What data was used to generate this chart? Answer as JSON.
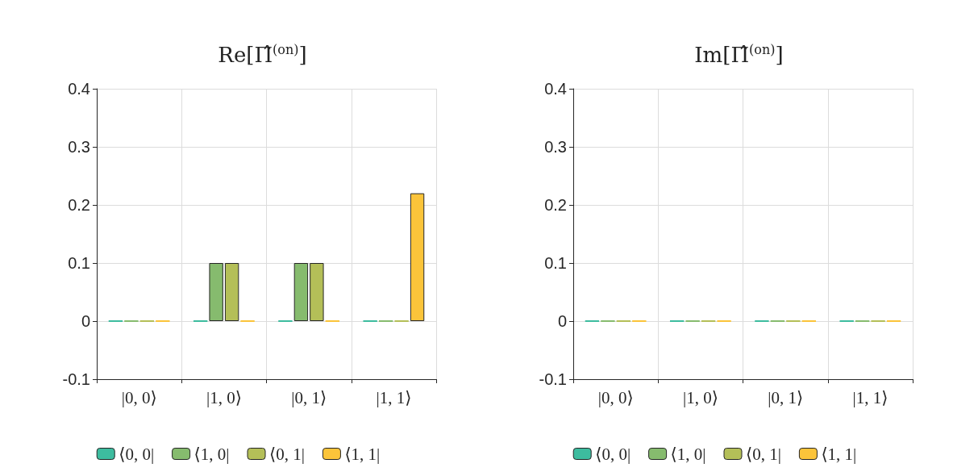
{
  "chart_data": [
    {
      "type": "bar",
      "title": "Re[Π̂$^{(on)}$]",
      "categories": [
        "|0, 0⟩",
        "|1, 0⟩",
        "|0, 1⟩",
        "|1, 1⟩"
      ],
      "series": [
        {
          "name": "⟨0, 0|",
          "color": "#3dbc9f",
          "values": [
            0,
            0,
            0,
            0
          ]
        },
        {
          "name": "⟨1, 0|",
          "color": "#86bb6e",
          "values": [
            0,
            0.1,
            0.1,
            0
          ]
        },
        {
          "name": "⟨0, 1|",
          "color": "#b4bf58",
          "values": [
            0,
            0.1,
            0.1,
            0
          ]
        },
        {
          "name": "⟨1, 1|",
          "color": "#fbc43a",
          "values": [
            0,
            0,
            0,
            0.22
          ]
        }
      ],
      "ylim": [
        -0.1,
        0.4
      ],
      "yticks": [
        -0.1,
        0,
        0.1,
        0.2,
        0.3,
        0.4
      ],
      "grid": true,
      "legend": "bottom"
    },
    {
      "type": "bar",
      "title": "Im[Π̂$^{(on)}$]",
      "categories": [
        "|0, 0⟩",
        "|1, 0⟩",
        "|0, 1⟩",
        "|1, 1⟩"
      ],
      "series": [
        {
          "name": "⟨0, 0|",
          "color": "#3dbc9f",
          "values": [
            0,
            0,
            0,
            0
          ]
        },
        {
          "name": "⟨1, 0|",
          "color": "#86bb6e",
          "values": [
            0,
            0,
            0,
            0
          ]
        },
        {
          "name": "⟨0, 1|",
          "color": "#b4bf58",
          "values": [
            0,
            0,
            0,
            0
          ]
        },
        {
          "name": "⟨1, 1|",
          "color": "#fbc43a",
          "values": [
            0,
            0,
            0,
            0
          ]
        }
      ],
      "ylim": [
        -0.1,
        0.4
      ],
      "yticks": [
        -0.1,
        0,
        0.1,
        0.2,
        0.3,
        0.4
      ],
      "grid": true,
      "legend": "bottom"
    }
  ]
}
